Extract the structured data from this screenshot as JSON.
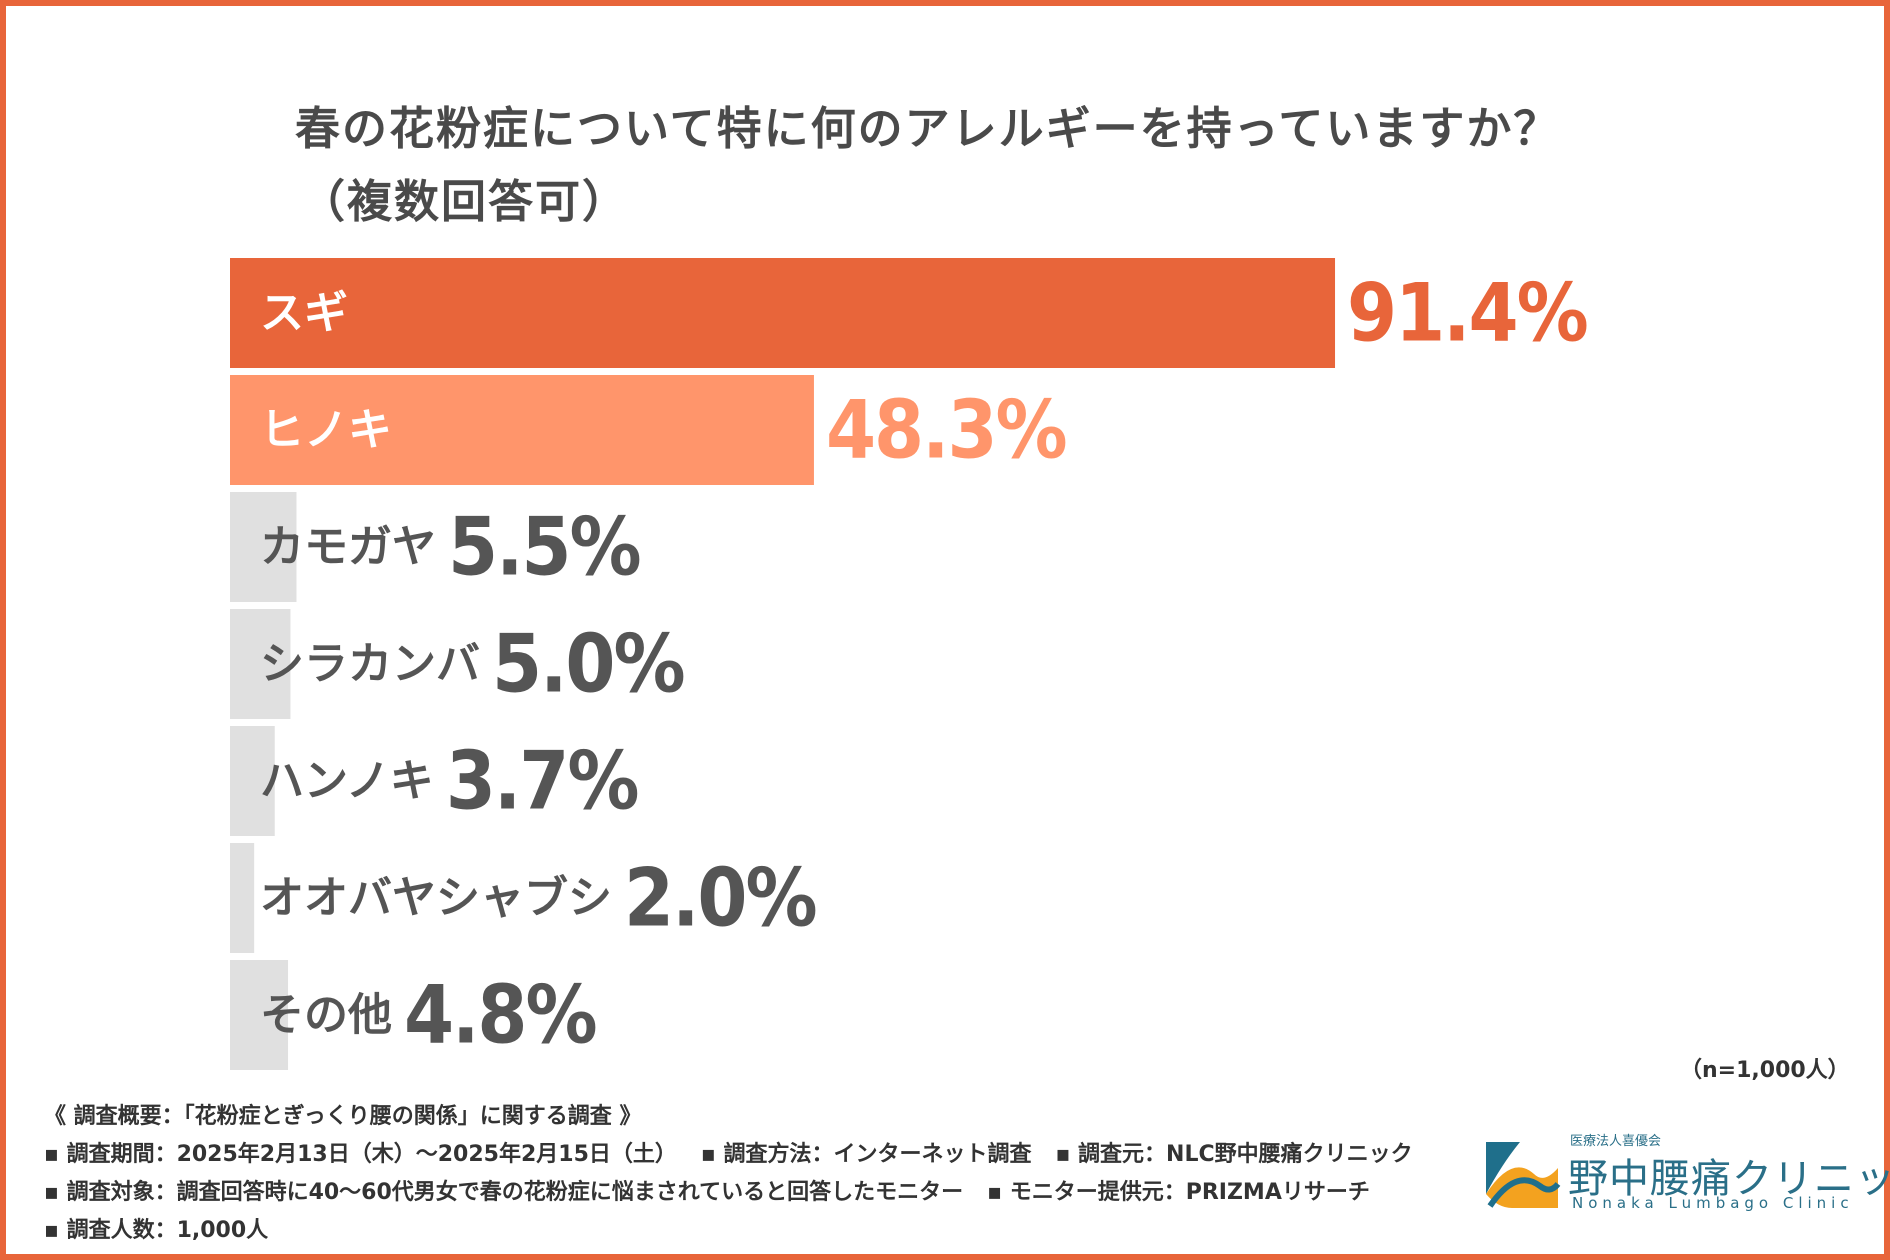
{
  "title": "春の花粉症について特に何のアレルギーを持っていますか？",
  "subtitle": "（複数回答可）",
  "chart_data": {
    "type": "bar",
    "orientation": "horizontal",
    "title": "春の花粉症について特に何のアレルギーを持っていますか？（複数回答可）",
    "categories": [
      "スギ",
      "ヒノキ",
      "カモガヤ",
      "シラカンバ",
      "ハンノキ",
      "オオバヤシャブシ",
      "その他"
    ],
    "values": [
      91.4,
      48.3,
      5.5,
      5.0,
      3.7,
      2.0,
      4.8
    ],
    "value_labels": [
      "91.4%",
      "48.3%",
      "5.5%",
      "5.0%",
      "3.7%",
      "2.0%",
      "4.8%"
    ],
    "unit": "%",
    "xlim": [
      0,
      100
    ],
    "colors": [
      "#e8653a",
      "#ff956b",
      "#e0e0e0",
      "#e0e0e0",
      "#e0e0e0",
      "#e0e0e0",
      "#e0e0e0"
    ],
    "label_colors": [
      "#ffffff",
      "#ffffff",
      "#555555",
      "#555555",
      "#555555",
      "#555555",
      "#555555"
    ],
    "value_colors": [
      "#e8653a",
      "#ff956b",
      "#555555",
      "#555555",
      "#555555",
      "#555555",
      "#555555"
    ]
  },
  "sample_note": "（n=1,000人）",
  "footer": {
    "heading": "《 調査概要：「花粉症とぎっくり腰の関係」に関する調査 》",
    "period": "▪ 調査期間：2025年2月13日（木）〜2025年2月15日（土）",
    "method": "▪ 調査方法：インターネット調査",
    "source": "▪ 調査元：NLC野中腰痛クリニック",
    "target": "▪ 調査対象：調査回答時に40〜60代男女で春の花粉症に悩まされていると回答したモニター",
    "provider": "▪ モニター提供元：PRIZMAリサーチ",
    "count": "▪ 調査人数：1,000人"
  },
  "logo": {
    "small": "医療法人喜優会",
    "name": "野中腰痛クリニック",
    "roman": "Nonaka Lumbago Clinic",
    "colors": {
      "blue": "#1f6f8b",
      "orange": "#f3a21f"
    }
  }
}
